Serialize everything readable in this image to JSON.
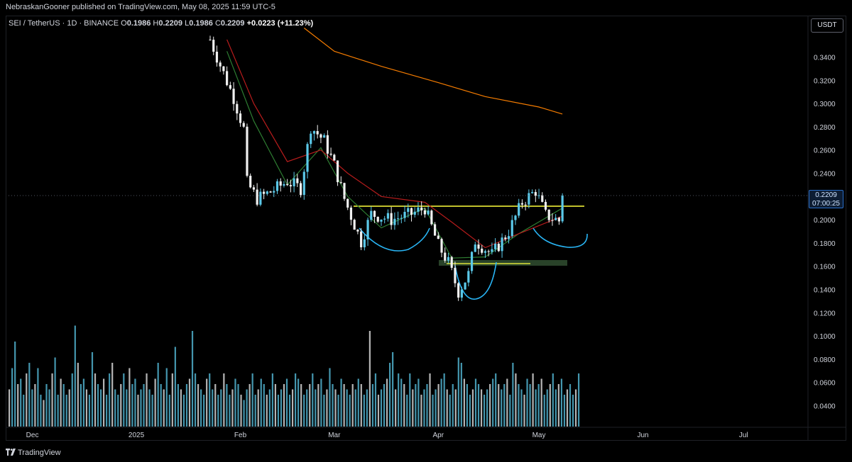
{
  "header": {
    "published_by": "NebraskanGooner published on TradingView.com, May 08, 2025 11:59 UTC-5"
  },
  "legend": {
    "symbol": "SEI / TetherUS · 1D · BINANCE",
    "open_label": "O",
    "open": "0.1986",
    "high_label": "H",
    "high": "0.2209",
    "low_label": "L",
    "low": "0.1986",
    "close_label": "C",
    "close": "0.2209",
    "change": "+0.0223 (+11.23%)"
  },
  "currency_button": "USDT",
  "last_price": {
    "value": "0.2209",
    "countdown": "07:00:25"
  },
  "footer": {
    "brand": "TradingView"
  },
  "colors": {
    "up": "#5bc8e8",
    "down": "#f0f0f0",
    "ma_fast": "#2e7d32",
    "ma_mid": "#b71c1c",
    "ma_slow": "#f57c00",
    "neckline": "#ffff3b",
    "pattern_curve": "#29b6f6",
    "support_zone": "#3b5e3b"
  },
  "chart_data": {
    "type": "candlestick",
    "symbol": "SEI/USDT",
    "timeframe": "1D",
    "y_ticks": [
      "0.3400",
      "0.3200",
      "0.3000",
      "0.2800",
      "0.2600",
      "0.2400",
      "0.2200",
      "0.2000",
      "0.1800",
      "0.1600",
      "0.1400",
      "0.1200",
      "0.1000",
      "0.0800",
      "0.0600",
      "0.0400"
    ],
    "x_ticks": [
      "Dec",
      "2025",
      "Feb",
      "Mar",
      "Apr",
      "May",
      "Jun",
      "Jul"
    ],
    "ylim": [
      0.02,
      0.365
    ],
    "price_points": [
      [
        "2025-01-23",
        0.355
      ],
      [
        "2025-01-26",
        0.333
      ],
      [
        "2025-01-30",
        0.305
      ],
      [
        "2025-02-02",
        0.278
      ],
      [
        "2025-02-03",
        0.232
      ],
      [
        "2025-02-06",
        0.218
      ],
      [
        "2025-02-10",
        0.224
      ],
      [
        "2025-02-15",
        0.233
      ],
      [
        "2025-02-19",
        0.227
      ],
      [
        "2025-02-22",
        0.28
      ],
      [
        "2025-02-26",
        0.268
      ],
      [
        "2025-03-01",
        0.247
      ],
      [
        "2025-03-04",
        0.218
      ],
      [
        "2025-03-09",
        0.181
      ],
      [
        "2025-03-12",
        0.205
      ],
      [
        "2025-03-18",
        0.2
      ],
      [
        "2025-03-24",
        0.205
      ],
      [
        "2025-03-28",
        0.21
      ],
      [
        "2025-04-01",
        0.178
      ],
      [
        "2025-04-04",
        0.163
      ],
      [
        "2025-04-07",
        0.138
      ],
      [
        "2025-04-10",
        0.153
      ],
      [
        "2025-04-12",
        0.182
      ],
      [
        "2025-04-17",
        0.17
      ],
      [
        "2025-04-22",
        0.19
      ],
      [
        "2025-04-26",
        0.215
      ],
      [
        "2025-04-30",
        0.225
      ],
      [
        "2025-05-03",
        0.204
      ],
      [
        "2025-05-07",
        0.199
      ],
      [
        "2025-05-08",
        0.2209
      ]
    ],
    "moving_averages": [
      {
        "color": "#2e7d32",
        "points": [
          [
            "2025-01-28",
            0.345
          ],
          [
            "2025-02-05",
            0.285
          ],
          [
            "2025-02-15",
            0.23
          ],
          [
            "2025-02-25",
            0.262
          ],
          [
            "2025-03-05",
            0.22
          ],
          [
            "2025-03-15",
            0.193
          ],
          [
            "2025-03-28",
            0.21
          ],
          [
            "2025-04-05",
            0.167
          ],
          [
            "2025-04-15",
            0.168
          ],
          [
            "2025-04-25",
            0.188
          ],
          [
            "2025-05-08",
            0.21
          ]
        ]
      },
      {
        "color": "#b71c1c",
        "points": [
          [
            "2025-01-28",
            0.355
          ],
          [
            "2025-02-05",
            0.3
          ],
          [
            "2025-02-15",
            0.25
          ],
          [
            "2025-02-25",
            0.26
          ],
          [
            "2025-03-05",
            0.24
          ],
          [
            "2025-03-15",
            0.22
          ],
          [
            "2025-03-28",
            0.215
          ],
          [
            "2025-04-05",
            0.198
          ],
          [
            "2025-04-15",
            0.176
          ],
          [
            "2025-04-25",
            0.188
          ],
          [
            "2025-05-08",
            0.203
          ]
        ]
      },
      {
        "color": "#f57c00",
        "points": [
          [
            "2025-02-20",
            0.365
          ],
          [
            "2025-03-01",
            0.345
          ],
          [
            "2025-03-15",
            0.332
          ],
          [
            "2025-04-01",
            0.318
          ],
          [
            "2025-04-15",
            0.306
          ],
          [
            "2025-05-01",
            0.297
          ],
          [
            "2025-05-08",
            0.291
          ]
        ]
      }
    ],
    "annotations": {
      "neckline_price": 0.2125,
      "support_zone": [
        0.1605,
        0.1635
      ],
      "support_line_price": 0.162
    },
    "volume_relative": [
      0.35,
      0.55,
      0.8,
      0.4,
      0.45,
      0.3,
      0.5,
      0.6,
      0.35,
      0.4,
      0.55,
      0.3,
      0.25,
      0.4,
      0.35,
      0.5,
      0.65,
      0.3,
      0.45,
      0.4,
      0.3,
      0.35,
      0.5,
      0.95,
      0.6,
      0.4,
      0.45,
      0.35,
      0.3,
      0.7,
      0.5,
      0.4,
      0.35,
      0.45,
      0.3,
      0.5,
      0.6,
      0.35,
      0.3,
      0.4,
      0.5,
      0.35,
      0.55,
      0.4,
      0.45,
      0.3,
      0.35,
      0.4,
      0.5,
      0.35,
      0.3,
      0.45,
      0.6,
      0.4,
      0.35,
      0.55,
      0.3,
      0.5,
      0.75,
      0.4,
      0.35,
      0.3,
      0.4,
      0.45,
      0.9,
      0.5,
      0.4,
      0.35,
      0.3,
      0.45,
      0.5,
      0.35,
      0.4,
      0.3,
      0.35,
      0.5,
      0.4,
      0.3,
      0.35,
      0.45,
      0.4,
      0.3,
      0.25,
      0.35,
      0.4,
      0.5,
      0.3,
      0.35,
      0.45,
      0.4,
      0.3,
      0.35,
      0.5,
      0.4,
      0.3,
      0.35,
      0.4,
      0.45,
      0.3,
      0.35,
      0.5,
      0.45,
      0.4,
      0.3,
      0.35,
      0.4,
      0.5,
      0.35,
      0.4,
      0.45,
      0.3,
      0.35,
      0.55,
      0.4,
      0.35,
      0.3,
      0.45,
      0.4,
      0.35,
      0.3,
      0.4,
      0.35,
      0.45,
      0.4,
      0.3,
      0.35,
      0.9,
      0.4,
      0.5,
      0.3,
      0.35,
      0.4,
      0.45,
      0.6,
      0.7,
      0.35,
      0.5,
      0.45,
      0.4,
      0.3,
      0.5,
      0.35,
      0.4,
      0.45,
      0.3,
      0.35,
      0.4,
      0.5,
      0.3,
      0.35,
      0.4,
      0.45,
      0.5,
      0.35,
      0.3,
      0.4,
      0.35,
      0.65,
      0.6,
      0.45,
      0.4,
      0.3,
      0.35,
      0.45,
      0.4,
      0.35,
      0.3,
      0.35,
      0.4,
      0.45,
      0.5,
      0.4,
      0.35,
      0.4,
      0.45,
      0.3,
      0.6,
      0.5,
      0.4,
      0.35,
      0.3,
      0.45,
      0.4,
      0.5,
      0.35,
      0.4,
      0.45,
      0.3,
      0.35,
      0.4,
      0.5,
      0.35,
      0.4,
      0.45,
      0.3,
      0.35,
      0.4,
      0.3,
      0.35,
      0.5
    ]
  }
}
